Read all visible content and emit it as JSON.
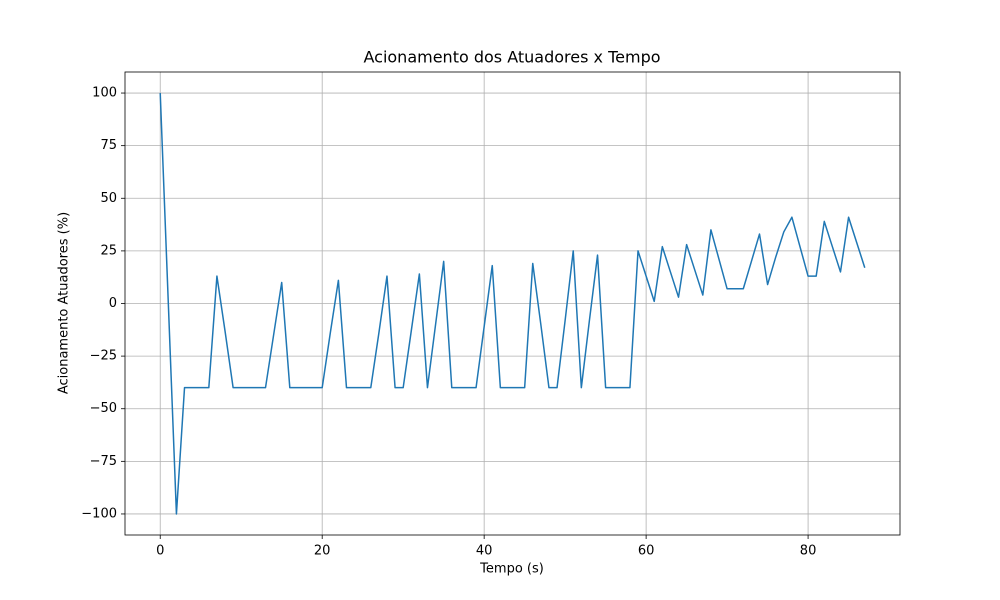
{
  "chart_data": {
    "type": "line",
    "title": "Acionamento dos Atuadores x Tempo",
    "x_label": "Tempo (s)",
    "y_label": "Acionamento Atuadores (%)",
    "x": [
      0,
      1,
      2,
      3,
      4,
      5,
      6,
      7,
      8,
      9,
      10,
      11,
      12,
      13,
      14,
      15,
      16,
      17,
      18,
      19,
      20,
      21,
      22,
      23,
      24,
      25,
      26,
      27,
      28,
      29,
      30,
      31,
      32,
      33,
      34,
      35,
      36,
      37,
      38,
      39,
      40,
      41,
      42,
      43,
      44,
      45,
      46,
      47,
      48,
      49,
      50,
      51,
      52,
      53,
      54,
      55,
      56,
      57,
      58,
      59,
      60,
      61,
      62,
      63,
      64,
      65,
      66,
      67,
      68,
      69,
      70,
      71,
      72,
      73,
      74,
      75,
      76,
      77,
      78,
      79,
      80,
      81,
      82,
      83,
      84,
      85,
      86,
      87
    ],
    "series": [
      {
        "color": "#1f77b4",
        "values": [
          100,
          0,
          -100,
          -40,
          -40,
          -40,
          -40,
          13,
          -13,
          -40,
          -40,
          -40,
          -40,
          -40,
          -15,
          10,
          -40,
          -40,
          -40,
          -40,
          -40,
          -14,
          11,
          -40,
          -40,
          -40,
          -40,
          -14,
          13,
          -40,
          -40,
          -13,
          14,
          -40,
          -10,
          20,
          -40,
          -40,
          -40,
          -40,
          -11,
          18,
          -40,
          -40,
          -40,
          -40,
          19,
          -10,
          -40,
          -40,
          -8,
          25,
          -40,
          -8,
          23,
          -40,
          -40,
          -40,
          -40,
          25,
          13,
          1,
          27,
          15,
          3,
          28,
          16,
          4,
          35,
          21,
          7,
          7,
          7,
          20,
          33,
          9,
          22,
          34,
          41,
          27,
          13,
          13,
          39,
          27,
          15,
          41,
          29,
          17
        ]
      }
    ],
    "xlim": [
      -4.35,
      91.35
    ],
    "ylim": [
      -110,
      110
    ],
    "xticks": [
      0,
      20,
      40,
      60,
      80
    ],
    "yticks": [
      {
        "value": -100,
        "label": "−100"
      },
      {
        "value": -75,
        "label": "−75"
      },
      {
        "value": -50,
        "label": "−50"
      },
      {
        "value": -25,
        "label": "−25"
      },
      0,
      25,
      50,
      75,
      100
    ],
    "grid": true
  }
}
